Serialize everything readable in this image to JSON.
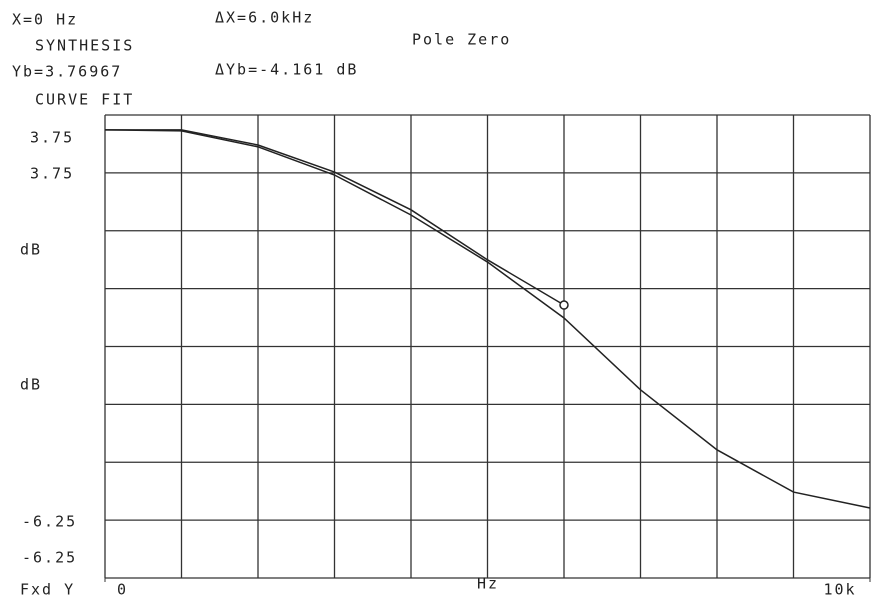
{
  "chart_data": {
    "type": "line",
    "annotations": [
      "X=0 Hz",
      "ΔX=6.0kHz",
      "Pole Zero",
      "Yb=3.76967",
      "ΔYb=-4.161 dB",
      "Fxd Y"
    ],
    "y_labels": [
      "3.75",
      "3.75",
      "dB",
      "dB",
      "-6.25",
      "-6.25"
    ],
    "x_label": "Hz",
    "xlim": [
      0,
      10000
    ],
    "xticks": [
      0,
      {
        "value": 10000,
        "label": "10k"
      }
    ],
    "ylim": [
      -7.5,
      5
    ],
    "series": [
      {
        "name": "SYNTHESIS",
        "color": "#222222",
        "x": [
          0,
          1000,
          2000,
          3000,
          4000,
          5000,
          6000
        ],
        "values": [
          4.6,
          4.6,
          4.19,
          3.46,
          2.44,
          1.09,
          -0.13
        ]
      },
      {
        "name": "CURVE FIT",
        "color": "#222222",
        "x": [
          0,
          1000,
          2000,
          3000,
          4000,
          5000,
          6000,
          7000,
          8000,
          9000,
          10000
        ],
        "values": [
          4.6,
          4.57,
          4.14,
          3.38,
          2.3,
          1.03,
          -0.48,
          -2.42,
          -4.04,
          -5.18,
          -5.61
        ]
      }
    ]
  }
}
